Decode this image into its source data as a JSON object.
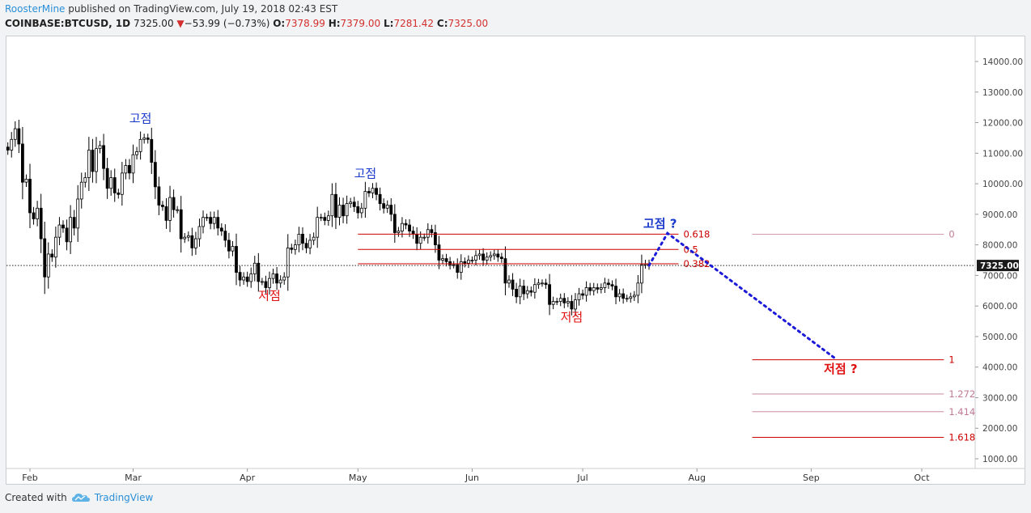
{
  "header": {
    "author": "RoosterMine",
    "published": "published on TradingView.com, July 19, 2018 02:43 EST",
    "symbol": "COINBASE:BTCUSD, 1D",
    "last": "7325.00",
    "change_arrow": "▼",
    "change": "−53.99 (−0.73%)",
    "o_label": "O:",
    "o_value": "7378.99",
    "h_label": "H:",
    "h_value": "7379.00",
    "l_label": "L:",
    "l_value": "7281.42",
    "c_label": "C:",
    "c_value": "7325.00"
  },
  "footer": {
    "created_with": "Created with",
    "brand": "TradingView",
    "logo_icon": "tradingview-cloud-icon"
  },
  "colors": {
    "accent": "#2b8fd8",
    "down": "#d32f2f",
    "candle": "#000000",
    "fib_red": "#cc0000",
    "fib_pink": "#c07a95",
    "annot_blue": "#1a3acc",
    "annot_red": "#e01010"
  },
  "chart_data": {
    "type": "candlestick",
    "title": "",
    "ylim": [
      800,
      14800
    ],
    "y_ticks": [
      "1000.00",
      "2000.00",
      "3000.00",
      "4000.00",
      "5000.00",
      "6000.00",
      "7000.00",
      "8000.00",
      "9000.00",
      "10000.00",
      "11000.00",
      "12000.00",
      "13000.00",
      "14000.00"
    ],
    "x_ticks": [
      {
        "label": "Feb",
        "date": "2018-02-01"
      },
      {
        "label": "Mar",
        "date": "2018-03-01"
      },
      {
        "label": "Apr",
        "date": "2018-04-01"
      },
      {
        "label": "May",
        "date": "2018-05-01"
      },
      {
        "label": "Jun",
        "date": "2018-06-01"
      },
      {
        "label": "Jul",
        "date": "2018-07-01"
      },
      {
        "label": "Aug",
        "date": "2018-08-01"
      },
      {
        "label": "Sep",
        "date": "2018-09-01"
      },
      {
        "label": "Oct",
        "date": "2018-10-01"
      }
    ],
    "x_range": [
      "2018-01-25",
      "2018-10-11"
    ],
    "grid": false,
    "last_price_line": {
      "value": 7325,
      "label": "7325.00"
    },
    "candles": [
      {
        "d": "2018-01-25",
        "c": 11200
      },
      {
        "d": "2018-01-26",
        "c": 11100
      },
      {
        "d": "2018-01-27",
        "c": 11450
      },
      {
        "d": "2018-01-28",
        "c": 11800
      },
      {
        "d": "2018-01-29",
        "c": 11300
      },
      {
        "d": "2018-01-30",
        "c": 10050
      },
      {
        "d": "2018-01-31",
        "c": 10150
      },
      {
        "d": "2018-02-01",
        "c": 9050
      },
      {
        "d": "2018-02-02",
        "c": 8850
      },
      {
        "d": "2018-02-03",
        "c": 9200
      },
      {
        "d": "2018-02-04",
        "c": 8200
      },
      {
        "d": "2018-02-05",
        "c": 6950
      },
      {
        "d": "2018-02-06",
        "c": 7700
      },
      {
        "d": "2018-02-07",
        "c": 7600
      },
      {
        "d": "2018-02-08",
        "c": 8250
      },
      {
        "d": "2018-02-09",
        "c": 8650
      },
      {
        "d": "2018-02-10",
        "c": 8550
      },
      {
        "d": "2018-02-11",
        "c": 8100
      },
      {
        "d": "2018-02-12",
        "c": 8900
      },
      {
        "d": "2018-02-13",
        "c": 8550
      },
      {
        "d": "2018-02-14",
        "c": 9500
      },
      {
        "d": "2018-02-15",
        "c": 10050
      },
      {
        "d": "2018-02-16",
        "c": 10200
      },
      {
        "d": "2018-02-17",
        "c": 11100
      },
      {
        "d": "2018-02-18",
        "c": 10400
      },
      {
        "d": "2018-02-19",
        "c": 11150
      },
      {
        "d": "2018-02-20",
        "c": 11250
      },
      {
        "d": "2018-02-21",
        "c": 10500
      },
      {
        "d": "2018-02-22",
        "c": 9850
      },
      {
        "d": "2018-02-23",
        "c": 10200
      },
      {
        "d": "2018-02-24",
        "c": 9700
      },
      {
        "d": "2018-02-25",
        "c": 9650
      },
      {
        "d": "2018-02-26",
        "c": 10350
      },
      {
        "d": "2018-02-27",
        "c": 10600
      },
      {
        "d": "2018-02-28",
        "c": 10350
      },
      {
        "d": "2018-03-01",
        "c": 10950
      },
      {
        "d": "2018-03-02",
        "c": 11050
      },
      {
        "d": "2018-03-03",
        "c": 11450
      },
      {
        "d": "2018-03-04",
        "c": 11500
      },
      {
        "d": "2018-03-05",
        "c": 11450
      },
      {
        "d": "2018-03-06",
        "c": 10700
      },
      {
        "d": "2018-03-07",
        "c": 9900
      },
      {
        "d": "2018-03-08",
        "c": 9300
      },
      {
        "d": "2018-03-09",
        "c": 9250
      },
      {
        "d": "2018-03-10",
        "c": 8800
      },
      {
        "d": "2018-03-11",
        "c": 9550
      },
      {
        "d": "2018-03-12",
        "c": 9150
      },
      {
        "d": "2018-03-13",
        "c": 9150
      },
      {
        "d": "2018-03-14",
        "c": 8200
      },
      {
        "d": "2018-03-15",
        "c": 8250
      },
      {
        "d": "2018-03-16",
        "c": 8300
      },
      {
        "d": "2018-03-17",
        "c": 7900
      },
      {
        "d": "2018-03-18",
        "c": 8200
      },
      {
        "d": "2018-03-19",
        "c": 8600
      },
      {
        "d": "2018-03-20",
        "c": 8900
      },
      {
        "d": "2018-03-21",
        "c": 8900
      },
      {
        "d": "2018-03-22",
        "c": 8700
      },
      {
        "d": "2018-03-23",
        "c": 8900
      },
      {
        "d": "2018-03-24",
        "c": 8550
      },
      {
        "d": "2018-03-25",
        "c": 8450
      },
      {
        "d": "2018-03-26",
        "c": 8150
      },
      {
        "d": "2018-03-27",
        "c": 7800
      },
      {
        "d": "2018-03-28",
        "c": 7950
      },
      {
        "d": "2018-03-29",
        "c": 7100
      },
      {
        "d": "2018-03-30",
        "c": 6850
      },
      {
        "d": "2018-03-31",
        "c": 6950
      },
      {
        "d": "2018-04-01",
        "c": 6800
      },
      {
        "d": "2018-04-02",
        "c": 7050
      },
      {
        "d": "2018-04-03",
        "c": 7400
      },
      {
        "d": "2018-04-04",
        "c": 6800
      },
      {
        "d": "2018-04-05",
        "c": 6800
      },
      {
        "d": "2018-04-06",
        "c": 6600
      },
      {
        "d": "2018-04-07",
        "c": 6900
      },
      {
        "d": "2018-04-08",
        "c": 7050
      },
      {
        "d": "2018-04-09",
        "c": 6750
      },
      {
        "d": "2018-04-10",
        "c": 6850
      },
      {
        "d": "2018-04-11",
        "c": 6950
      },
      {
        "d": "2018-04-12",
        "c": 7900
      },
      {
        "d": "2018-04-13",
        "c": 7850
      },
      {
        "d": "2018-04-14",
        "c": 8000
      },
      {
        "d": "2018-04-15",
        "c": 8350
      },
      {
        "d": "2018-04-16",
        "c": 8050
      },
      {
        "d": "2018-04-17",
        "c": 7900
      },
      {
        "d": "2018-04-18",
        "c": 8150
      },
      {
        "d": "2018-04-19",
        "c": 8250
      },
      {
        "d": "2018-04-20",
        "c": 8900
      },
      {
        "d": "2018-04-21",
        "c": 8900
      },
      {
        "d": "2018-04-22",
        "c": 8800
      },
      {
        "d": "2018-04-23",
        "c": 8950
      },
      {
        "d": "2018-04-24",
        "c": 9650
      },
      {
        "d": "2018-04-25",
        "c": 8900
      },
      {
        "d": "2018-04-26",
        "c": 9300
      },
      {
        "d": "2018-04-27",
        "c": 8950
      },
      {
        "d": "2018-04-28",
        "c": 9350
      },
      {
        "d": "2018-04-29",
        "c": 9400
      },
      {
        "d": "2018-04-30",
        "c": 9250
      },
      {
        "d": "2018-05-01",
        "c": 9050
      },
      {
        "d": "2018-05-02",
        "c": 9200
      },
      {
        "d": "2018-05-03",
        "c": 9750
      },
      {
        "d": "2018-05-04",
        "c": 9700
      },
      {
        "d": "2018-05-05",
        "c": 9850
      },
      {
        "d": "2018-05-06",
        "c": 9650
      },
      {
        "d": "2018-05-07",
        "c": 9350
      },
      {
        "d": "2018-05-08",
        "c": 9200
      },
      {
        "d": "2018-05-09",
        "c": 9300
      },
      {
        "d": "2018-05-10",
        "c": 9000
      },
      {
        "d": "2018-05-11",
        "c": 8400
      },
      {
        "d": "2018-05-12",
        "c": 8450
      },
      {
        "d": "2018-05-13",
        "c": 8700
      },
      {
        "d": "2018-05-14",
        "c": 8650
      },
      {
        "d": "2018-05-15",
        "c": 8450
      },
      {
        "d": "2018-05-16",
        "c": 8350
      },
      {
        "d": "2018-05-17",
        "c": 8050
      },
      {
        "d": "2018-05-18",
        "c": 8250
      },
      {
        "d": "2018-05-19",
        "c": 8250
      },
      {
        "d": "2018-05-20",
        "c": 8500
      },
      {
        "d": "2018-05-21",
        "c": 8400
      },
      {
        "d": "2018-05-22",
        "c": 8000
      },
      {
        "d": "2018-05-23",
        "c": 7500
      },
      {
        "d": "2018-05-24",
        "c": 7550
      },
      {
        "d": "2018-05-25",
        "c": 7450
      },
      {
        "d": "2018-05-26",
        "c": 7350
      },
      {
        "d": "2018-05-27",
        "c": 7350
      },
      {
        "d": "2018-05-28",
        "c": 7100
      },
      {
        "d": "2018-05-29",
        "c": 7450
      },
      {
        "d": "2018-05-30",
        "c": 7400
      },
      {
        "d": "2018-05-31",
        "c": 7500
      },
      {
        "d": "2018-06-01",
        "c": 7500
      },
      {
        "d": "2018-06-02",
        "c": 7650
      },
      {
        "d": "2018-06-03",
        "c": 7700
      },
      {
        "d": "2018-06-04",
        "c": 7500
      },
      {
        "d": "2018-06-05",
        "c": 7600
      },
      {
        "d": "2018-06-06",
        "c": 7650
      },
      {
        "d": "2018-06-07",
        "c": 7700
      },
      {
        "d": "2018-06-08",
        "c": 7600
      },
      {
        "d": "2018-06-09",
        "c": 7550
      },
      {
        "d": "2018-06-10",
        "c": 6750
      },
      {
        "d": "2018-06-11",
        "c": 6850
      },
      {
        "d": "2018-06-12",
        "c": 6550
      },
      {
        "d": "2018-06-13",
        "c": 6300
      },
      {
        "d": "2018-06-14",
        "c": 6650
      },
      {
        "d": "2018-06-15",
        "c": 6400
      },
      {
        "d": "2018-06-16",
        "c": 6500
      },
      {
        "d": "2018-06-17",
        "c": 6450
      },
      {
        "d": "2018-06-18",
        "c": 6700
      },
      {
        "d": "2018-06-19",
        "c": 6750
      },
      {
        "d": "2018-06-20",
        "c": 6750
      },
      {
        "d": "2018-06-21",
        "c": 6700
      },
      {
        "d": "2018-06-22",
        "c": 6050
      },
      {
        "d": "2018-06-23",
        "c": 6150
      },
      {
        "d": "2018-06-24",
        "c": 6150
      },
      {
        "d": "2018-06-25",
        "c": 6250
      },
      {
        "d": "2018-06-26",
        "c": 6100
      },
      {
        "d": "2018-06-27",
        "c": 6150
      },
      {
        "d": "2018-06-28",
        "c": 5900
      },
      {
        "d": "2018-06-29",
        "c": 6200
      },
      {
        "d": "2018-06-30",
        "c": 6400
      },
      {
        "d": "2018-07-01",
        "c": 6350
      },
      {
        "d": "2018-07-02",
        "c": 6600
      },
      {
        "d": "2018-07-03",
        "c": 6500
      },
      {
        "d": "2018-07-04",
        "c": 6600
      },
      {
        "d": "2018-07-05",
        "c": 6550
      },
      {
        "d": "2018-07-06",
        "c": 6600
      },
      {
        "d": "2018-07-07",
        "c": 6750
      },
      {
        "d": "2018-07-08",
        "c": 6700
      },
      {
        "d": "2018-07-09",
        "c": 6650
      },
      {
        "d": "2018-07-10",
        "c": 6300
      },
      {
        "d": "2018-07-11",
        "c": 6400
      },
      {
        "d": "2018-07-12",
        "c": 6250
      },
      {
        "d": "2018-07-13",
        "c": 6250
      },
      {
        "d": "2018-07-14",
        "c": 6300
      },
      {
        "d": "2018-07-15",
        "c": 6350
      },
      {
        "d": "2018-07-16",
        "c": 6750
      },
      {
        "d": "2018-07-17",
        "c": 7350
      },
      {
        "d": "2018-07-18",
        "c": 7378.99
      },
      {
        "d": "2018-07-19",
        "c": 7325
      }
    ],
    "fib_levels": [
      {
        "label": "0.618",
        "value": 8350,
        "color": "red",
        "segment": "left"
      },
      {
        "label": "0.5",
        "value": 7850,
        "color": "red",
        "segment": "left"
      },
      {
        "label": "0.382",
        "value": 7380,
        "color": "red",
        "segment": "left"
      },
      {
        "label": "0",
        "value": 8350,
        "color": "pink",
        "segment": "right"
      },
      {
        "label": "1",
        "value": 4240,
        "color": "red",
        "segment": "right"
      },
      {
        "label": "1.272",
        "value": 3120,
        "color": "pink",
        "segment": "right"
      },
      {
        "label": "1.414",
        "value": 2540,
        "color": "pink",
        "segment": "right"
      },
      {
        "label": "1.618",
        "value": 1700,
        "color": "red",
        "segment": "right"
      }
    ],
    "projection": {
      "points": [
        {
          "d": "2018-07-19",
          "v": 7325
        },
        {
          "d": "2018-07-24",
          "v": 8380
        },
        {
          "d": "2018-09-08",
          "v": 4240
        }
      ],
      "style": "dotted",
      "color": "blue"
    },
    "annotations": [
      {
        "text": "고점",
        "d": "2018-03-03",
        "v": 12000,
        "color": "blue"
      },
      {
        "text": "고점",
        "d": "2018-05-03",
        "v": 10200,
        "color": "blue"
      },
      {
        "text": "고점 ?",
        "d": "2018-07-22",
        "v": 8560,
        "color": "blue"
      },
      {
        "text": "저점",
        "d": "2018-04-07",
        "v": 6200,
        "color": "red"
      },
      {
        "text": "저점",
        "d": "2018-06-28",
        "v": 5500,
        "color": "red"
      },
      {
        "text": "저점 ?",
        "d": "2018-09-09",
        "v": 3800,
        "color": "red"
      }
    ]
  }
}
